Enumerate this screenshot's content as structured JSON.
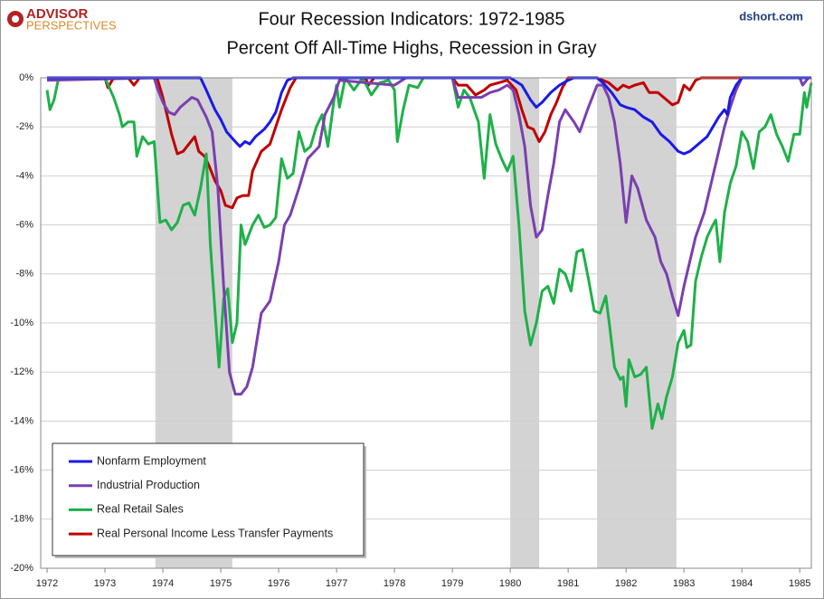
{
  "chart_data": {
    "type": "line",
    "title": "Four Recession Indicators: 1972-1985",
    "subtitle": "Percent Off All-Time Highs, Recession in Gray",
    "source": "dshort.com",
    "brand": "ADVISOR",
    "brand_sub": "PERSPECTIVES",
    "xlim": [
      1971.89,
      1985.2
    ],
    "ylim": [
      -20,
      0
    ],
    "xticks": [
      1972,
      1973,
      1974,
      1975,
      1976,
      1977,
      1978,
      1979,
      1980,
      1981,
      1982,
      1983,
      1984,
      1985
    ],
    "yticks": [
      {
        "value": 0,
        "label": "0%"
      },
      {
        "value": -2,
        "label": "-2%"
      },
      {
        "value": -4,
        "label": "-4%"
      },
      {
        "value": -6,
        "label": "-6%"
      },
      {
        "value": -8,
        "label": "-8%"
      },
      {
        "value": -10,
        "label": "-10%"
      },
      {
        "value": -12,
        "label": "-12%"
      },
      {
        "value": -14,
        "label": "-14%"
      },
      {
        "value": -16,
        "label": "-16%"
      },
      {
        "value": -18,
        "label": "-18%"
      },
      {
        "value": -20,
        "label": "-20%"
      }
    ],
    "grid": true,
    "recession_color": "#d3d3d3",
    "recessions": [
      [
        1973.87,
        1975.2
      ],
      [
        1980.0,
        1980.5
      ],
      [
        1981.5,
        1982.87
      ]
    ],
    "legend": "lower-left",
    "series": [
      {
        "name": "Nonfarm Employment",
        "color": "#1a1ae6",
        "x": [
          1972,
          1974.65,
          1974.75,
          1974.9,
          1975.0,
          1975.1,
          1975.25,
          1975.33,
          1975.42,
          1975.5,
          1975.6,
          1975.75,
          1975.85,
          1975.95,
          1976.05,
          1976.15,
          1976.25,
          1980.0,
          1980.2,
          1980.35,
          1980.45,
          1980.55,
          1980.7,
          1980.85,
          1981.0,
          1981.1,
          1981.5,
          1981.6,
          1981.75,
          1981.9,
          1982.0,
          1982.15,
          1982.3,
          1982.45,
          1982.6,
          1982.75,
          1982.9,
          1983.0,
          1983.1,
          1983.25,
          1983.4,
          1983.5,
          1983.6,
          1983.7,
          1983.75,
          1983.8,
          1983.9,
          1984.0,
          1985.2
        ],
        "values": [
          0,
          0,
          -0.5,
          -1.3,
          -1.7,
          -2.2,
          -2.6,
          -2.8,
          -2.6,
          -2.7,
          -2.4,
          -2.1,
          -1.8,
          -1.4,
          -0.6,
          -0.1,
          0,
          0,
          -0.3,
          -0.9,
          -1.2,
          -1.0,
          -0.6,
          -0.3,
          -0.1,
          0,
          0,
          -0.2,
          -0.6,
          -1.1,
          -1.2,
          -1.3,
          -1.6,
          -1.8,
          -2.3,
          -2.6,
          -3.0,
          -3.1,
          -3.0,
          -2.7,
          -2.4,
          -2.0,
          -1.6,
          -1.3,
          -1.5,
          -0.8,
          -0.3,
          0,
          0
        ]
      },
      {
        "name": "Industrial Production",
        "color": "#7a3fb0",
        "x": [
          1972,
          1973.85,
          1973.9,
          1974.0,
          1974.1,
          1974.2,
          1974.3,
          1974.4,
          1974.5,
          1974.6,
          1974.75,
          1974.85,
          1974.95,
          1975.05,
          1975.15,
          1975.25,
          1975.35,
          1975.45,
          1975.55,
          1975.7,
          1975.85,
          1976.0,
          1976.1,
          1976.2,
          1976.35,
          1976.5,
          1976.7,
          1976.8,
          1976.95,
          1977.05,
          1977.5,
          1978.0,
          1978.2,
          1979.0,
          1979.1,
          1979.3,
          1979.5,
          1979.65,
          1979.8,
          1979.95,
          1980.05,
          1980.15,
          1980.25,
          1980.35,
          1980.45,
          1980.55,
          1980.65,
          1980.75,
          1980.85,
          1980.95,
          1981.1,
          1981.2,
          1981.35,
          1981.5,
          1981.6,
          1981.7,
          1981.8,
          1981.9,
          1982.0,
          1982.1,
          1982.2,
          1982.35,
          1982.5,
          1982.6,
          1982.7,
          1982.8,
          1982.9,
          1983.0,
          1983.1,
          1983.2,
          1983.35,
          1983.5,
          1983.6,
          1983.7,
          1983.8,
          1983.9,
          1984.0,
          1985.0,
          1985.05,
          1985.15
        ],
        "values": [
          -0.1,
          0,
          -0.4,
          -1.0,
          -1.4,
          -1.5,
          -1.2,
          -1.0,
          -0.8,
          -0.9,
          -1.6,
          -2.2,
          -4.5,
          -8.5,
          -12.0,
          -12.9,
          -12.9,
          -12.6,
          -11.8,
          -9.6,
          -9.1,
          -7.5,
          -6.0,
          -5.6,
          -4.5,
          -3.3,
          -2.8,
          -1.5,
          -0.8,
          -0.1,
          -0.2,
          -0.3,
          0,
          0,
          -0.8,
          -0.8,
          -0.8,
          -0.6,
          -0.5,
          -0.3,
          -0.5,
          -1.5,
          -2.8,
          -5.2,
          -6.5,
          -6.2,
          -4.8,
          -3.5,
          -1.8,
          -1.3,
          -1.8,
          -2.2,
          -1.2,
          -0.3,
          -0.3,
          -0.8,
          -1.8,
          -3.5,
          -5.9,
          -4.0,
          -4.5,
          -5.8,
          -6.5,
          -7.5,
          -8.0,
          -8.9,
          -9.7,
          -8.5,
          -7.5,
          -6.5,
          -5.5,
          -4.0,
          -3.0,
          -2.0,
          -1.2,
          -0.5,
          0,
          0,
          -0.3,
          0
        ]
      },
      {
        "name": "Real Retail Sales",
        "color": "#1fb04a",
        "x": [
          1972.0,
          1972.05,
          1972.12,
          1972.2,
          1973.0,
          1973.15,
          1973.25,
          1973.3,
          1973.4,
          1973.5,
          1973.55,
          1973.65,
          1973.75,
          1973.85,
          1973.95,
          1974.05,
          1974.15,
          1974.25,
          1974.35,
          1974.45,
          1974.55,
          1974.65,
          1974.75,
          1974.82,
          1974.9,
          1974.97,
          1975.05,
          1975.12,
          1975.2,
          1975.28,
          1975.35,
          1975.42,
          1975.55,
          1975.65,
          1975.75,
          1975.85,
          1975.95,
          1976.05,
          1976.15,
          1976.25,
          1976.35,
          1976.45,
          1976.55,
          1976.65,
          1976.75,
          1976.85,
          1976.95,
          1977.0,
          1977.05,
          1977.15,
          1977.3,
          1977.45,
          1977.6,
          1977.75,
          1977.9,
          1978.0,
          1978.05,
          1978.15,
          1978.25,
          1978.4,
          1978.5,
          1979.0,
          1979.1,
          1979.2,
          1979.3,
          1979.45,
          1979.55,
          1979.65,
          1979.75,
          1979.85,
          1979.95,
          1980.05,
          1980.15,
          1980.25,
          1980.35,
          1980.45,
          1980.55,
          1980.65,
          1980.75,
          1980.85,
          1980.95,
          1981.05,
          1981.15,
          1981.25,
          1981.35,
          1981.45,
          1981.55,
          1981.65,
          1981.72,
          1981.8,
          1981.9,
          1981.95,
          1982.0,
          1982.05,
          1982.15,
          1982.25,
          1982.35,
          1982.45,
          1982.55,
          1982.62,
          1982.7,
          1982.8,
          1982.9,
          1983.0,
          1983.05,
          1983.12,
          1983.2,
          1983.3,
          1983.4,
          1983.5,
          1983.55,
          1983.62,
          1983.7,
          1983.8,
          1983.9,
          1984.0,
          1984.1,
          1984.2,
          1984.3,
          1984.4,
          1984.5,
          1984.6,
          1984.7,
          1984.8,
          1984.9,
          1985.0,
          1985.08,
          1985.12,
          1985.2
        ],
        "values": [
          -0.5,
          -1.3,
          -0.9,
          0,
          0,
          -0.8,
          -1.5,
          -2.0,
          -1.8,
          -1.8,
          -3.2,
          -2.4,
          -2.7,
          -2.6,
          -5.9,
          -5.8,
          -6.2,
          -5.9,
          -5.2,
          -5.1,
          -5.6,
          -4.5,
          -3.1,
          -6.8,
          -9.5,
          -11.8,
          -9.0,
          -8.6,
          -10.8,
          -10.0,
          -6.0,
          -6.8,
          -6.0,
          -5.6,
          -6.1,
          -6.0,
          -5.7,
          -3.3,
          -4.1,
          -3.9,
          -2.2,
          -3.0,
          -2.8,
          -2.0,
          -1.5,
          -2.8,
          -1.0,
          -0.3,
          -1.2,
          0,
          -0.5,
          0,
          -0.7,
          -0.2,
          -0.1,
          -0.5,
          -2.6,
          -1.3,
          -0.3,
          -0.4,
          0,
          0,
          -1.2,
          -0.5,
          -0.8,
          -1.8,
          -4.1,
          -1.5,
          -2.7,
          -3.3,
          -3.8,
          -3.2,
          -6.0,
          -9.5,
          -10.9,
          -10.0,
          -8.7,
          -8.5,
          -9.2,
          -7.8,
          -8.0,
          -8.7,
          -7.1,
          -7.0,
          -8.2,
          -9.5,
          -9.6,
          -8.9,
          -10.2,
          -11.8,
          -12.3,
          -12.2,
          -13.4,
          -11.5,
          -12.2,
          -12.1,
          -11.8,
          -14.3,
          -13.3,
          -13.9,
          -13.0,
          -12.2,
          -10.8,
          -10.3,
          -11.0,
          -10.9,
          -8.3,
          -7.3,
          -6.5,
          -6.0,
          -5.8,
          -7.5,
          -5.5,
          -4.3,
          -3.6,
          -2.2,
          -2.6,
          -3.7,
          -2.2,
          -2.0,
          -1.5,
          -2.3,
          -2.8,
          -3.4,
          -2.3,
          -2.3,
          -0.6,
          -1.2,
          -0.2
        ]
      },
      {
        "name": "Real Personal Income Less Transfer Payments",
        "color": "#c00000",
        "x": [
          1972.0,
          1973.0,
          1973.05,
          1973.15,
          1973.4,
          1973.5,
          1973.6,
          1973.9,
          1974.0,
          1974.05,
          1974.15,
          1974.25,
          1974.35,
          1974.45,
          1974.55,
          1974.62,
          1974.72,
          1974.8,
          1974.9,
          1975.0,
          1975.08,
          1975.2,
          1975.28,
          1975.38,
          1975.48,
          1975.55,
          1975.7,
          1975.85,
          1975.95,
          1976.05,
          1976.2,
          1976.3,
          1977.5,
          1977.55,
          1977.65,
          1979.0,
          1979.1,
          1979.25,
          1979.4,
          1979.55,
          1979.65,
          1979.8,
          1979.95,
          1980.1,
          1980.2,
          1980.3,
          1980.4,
          1980.5,
          1980.6,
          1980.7,
          1980.8,
          1980.9,
          1981.0,
          1981.5,
          1981.7,
          1981.85,
          1981.95,
          1982.05,
          1982.15,
          1982.3,
          1982.4,
          1982.55,
          1982.7,
          1982.8,
          1982.9,
          1983.0,
          1983.1,
          1983.2,
          1983.3,
          1985.2
        ],
        "values": [
          0,
          0,
          -0.4,
          0,
          0,
          -0.3,
          0,
          0,
          -0.8,
          -1.3,
          -2.3,
          -3.1,
          -3.0,
          -2.7,
          -2.4,
          -3.0,
          -3.2,
          -3.6,
          -4.2,
          -4.6,
          -5.2,
          -5.3,
          -4.9,
          -4.8,
          -4.8,
          -3.8,
          -3.0,
          -2.7,
          -2.0,
          -1.3,
          -0.4,
          0,
          0,
          -0.3,
          0,
          0,
          -0.3,
          -0.3,
          -0.7,
          -0.5,
          -0.3,
          -0.2,
          -0.1,
          -0.5,
          -1.3,
          -2.0,
          -2.1,
          -2.6,
          -2.2,
          -1.5,
          -1.0,
          -0.4,
          0,
          0,
          -0.2,
          -0.5,
          -0.3,
          -0.4,
          -0.3,
          -0.2,
          -0.6,
          -0.6,
          -0.9,
          -1.1,
          -1.0,
          -0.3,
          -0.5,
          -0.1,
          0,
          0
        ]
      }
    ]
  }
}
